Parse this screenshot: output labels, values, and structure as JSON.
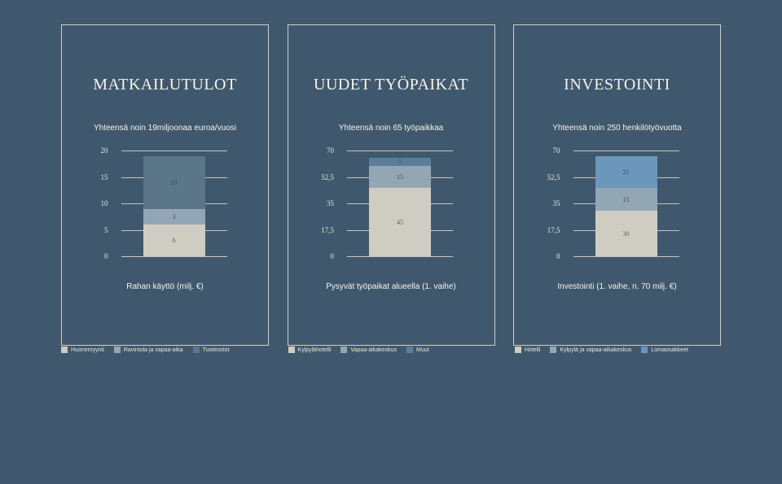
{
  "background_color": "#40586d",
  "border_color": "#d0d0c8",
  "grid_color": "#c8c6bf",
  "text_color": "#f5f3ec",
  "columns": [
    {
      "title": "MATKAILUTULOT",
      "subtitle": "Yhteensä noin 19miljoonaa euroa/vuosi",
      "ymax": 20,
      "ticks": [
        "20",
        "15",
        "10",
        "5",
        "0"
      ],
      "segments": [
        {
          "value": 6,
          "label": "6",
          "color": "#cfcdc2"
        },
        {
          "value": 3,
          "label": "3",
          "color": "#93a6b4"
        },
        {
          "value": 10,
          "label": "10",
          "color": "#5b7589"
        }
      ],
      "xlabel": "Rahan käyttö (milj. €)",
      "legend": [
        {
          "color": "#cfcdc2",
          "label": "Huonemyynti"
        },
        {
          "color": "#93a6b4",
          "label": "Ravintola ja vapaa-aika"
        },
        {
          "color": "#5b7589",
          "label": "Tuoteostot"
        }
      ]
    },
    {
      "title": "UUDET TYÖPAIKAT",
      "subtitle": "Yhteensä noin 65 työpaikkaa",
      "ymax": 70,
      "ticks": [
        "70",
        "52,5",
        "35",
        "17,5",
        "0"
      ],
      "segments": [
        {
          "value": 45,
          "label": "45",
          "color": "#cfcdc2"
        },
        {
          "value": 15,
          "label": "15",
          "color": "#93a6b4"
        },
        {
          "value": 5,
          "label": "5",
          "color": "#5d7e9a"
        }
      ],
      "xlabel": "Pysyvät työpaikat alueella (1. vaihe)",
      "legend": [
        {
          "color": "#cfcdc2",
          "label": "Kylpylähotelli"
        },
        {
          "color": "#93a6b4",
          "label": "Vapaa-aikakeskus"
        },
        {
          "color": "#5d7e9a",
          "label": "Muut"
        }
      ]
    },
    {
      "title": "INVESTOINTI",
      "subtitle": "Yhteensä noin 250 henkilötyövuotta",
      "ymax": 70,
      "ticks": [
        "70",
        "52,5",
        "35",
        "17,5",
        "0"
      ],
      "segments": [
        {
          "value": 30,
          "label": "30",
          "color": "#cfcdc2"
        },
        {
          "value": 15,
          "label": "15",
          "color": "#93a6b4"
        },
        {
          "value": 21,
          "label": "21",
          "color": "#6a97bb"
        }
      ],
      "xlabel": "Investointi (1. vaihe, n. 70 milj. €)",
      "legend": [
        {
          "color": "#cfcdc2",
          "label": "Hotelli"
        },
        {
          "color": "#93a6b4",
          "label": "Kylpylä ja vapaa-aikakeskus"
        },
        {
          "color": "#6a97bb",
          "label": "Lomaosakkeet"
        }
      ]
    }
  ]
}
